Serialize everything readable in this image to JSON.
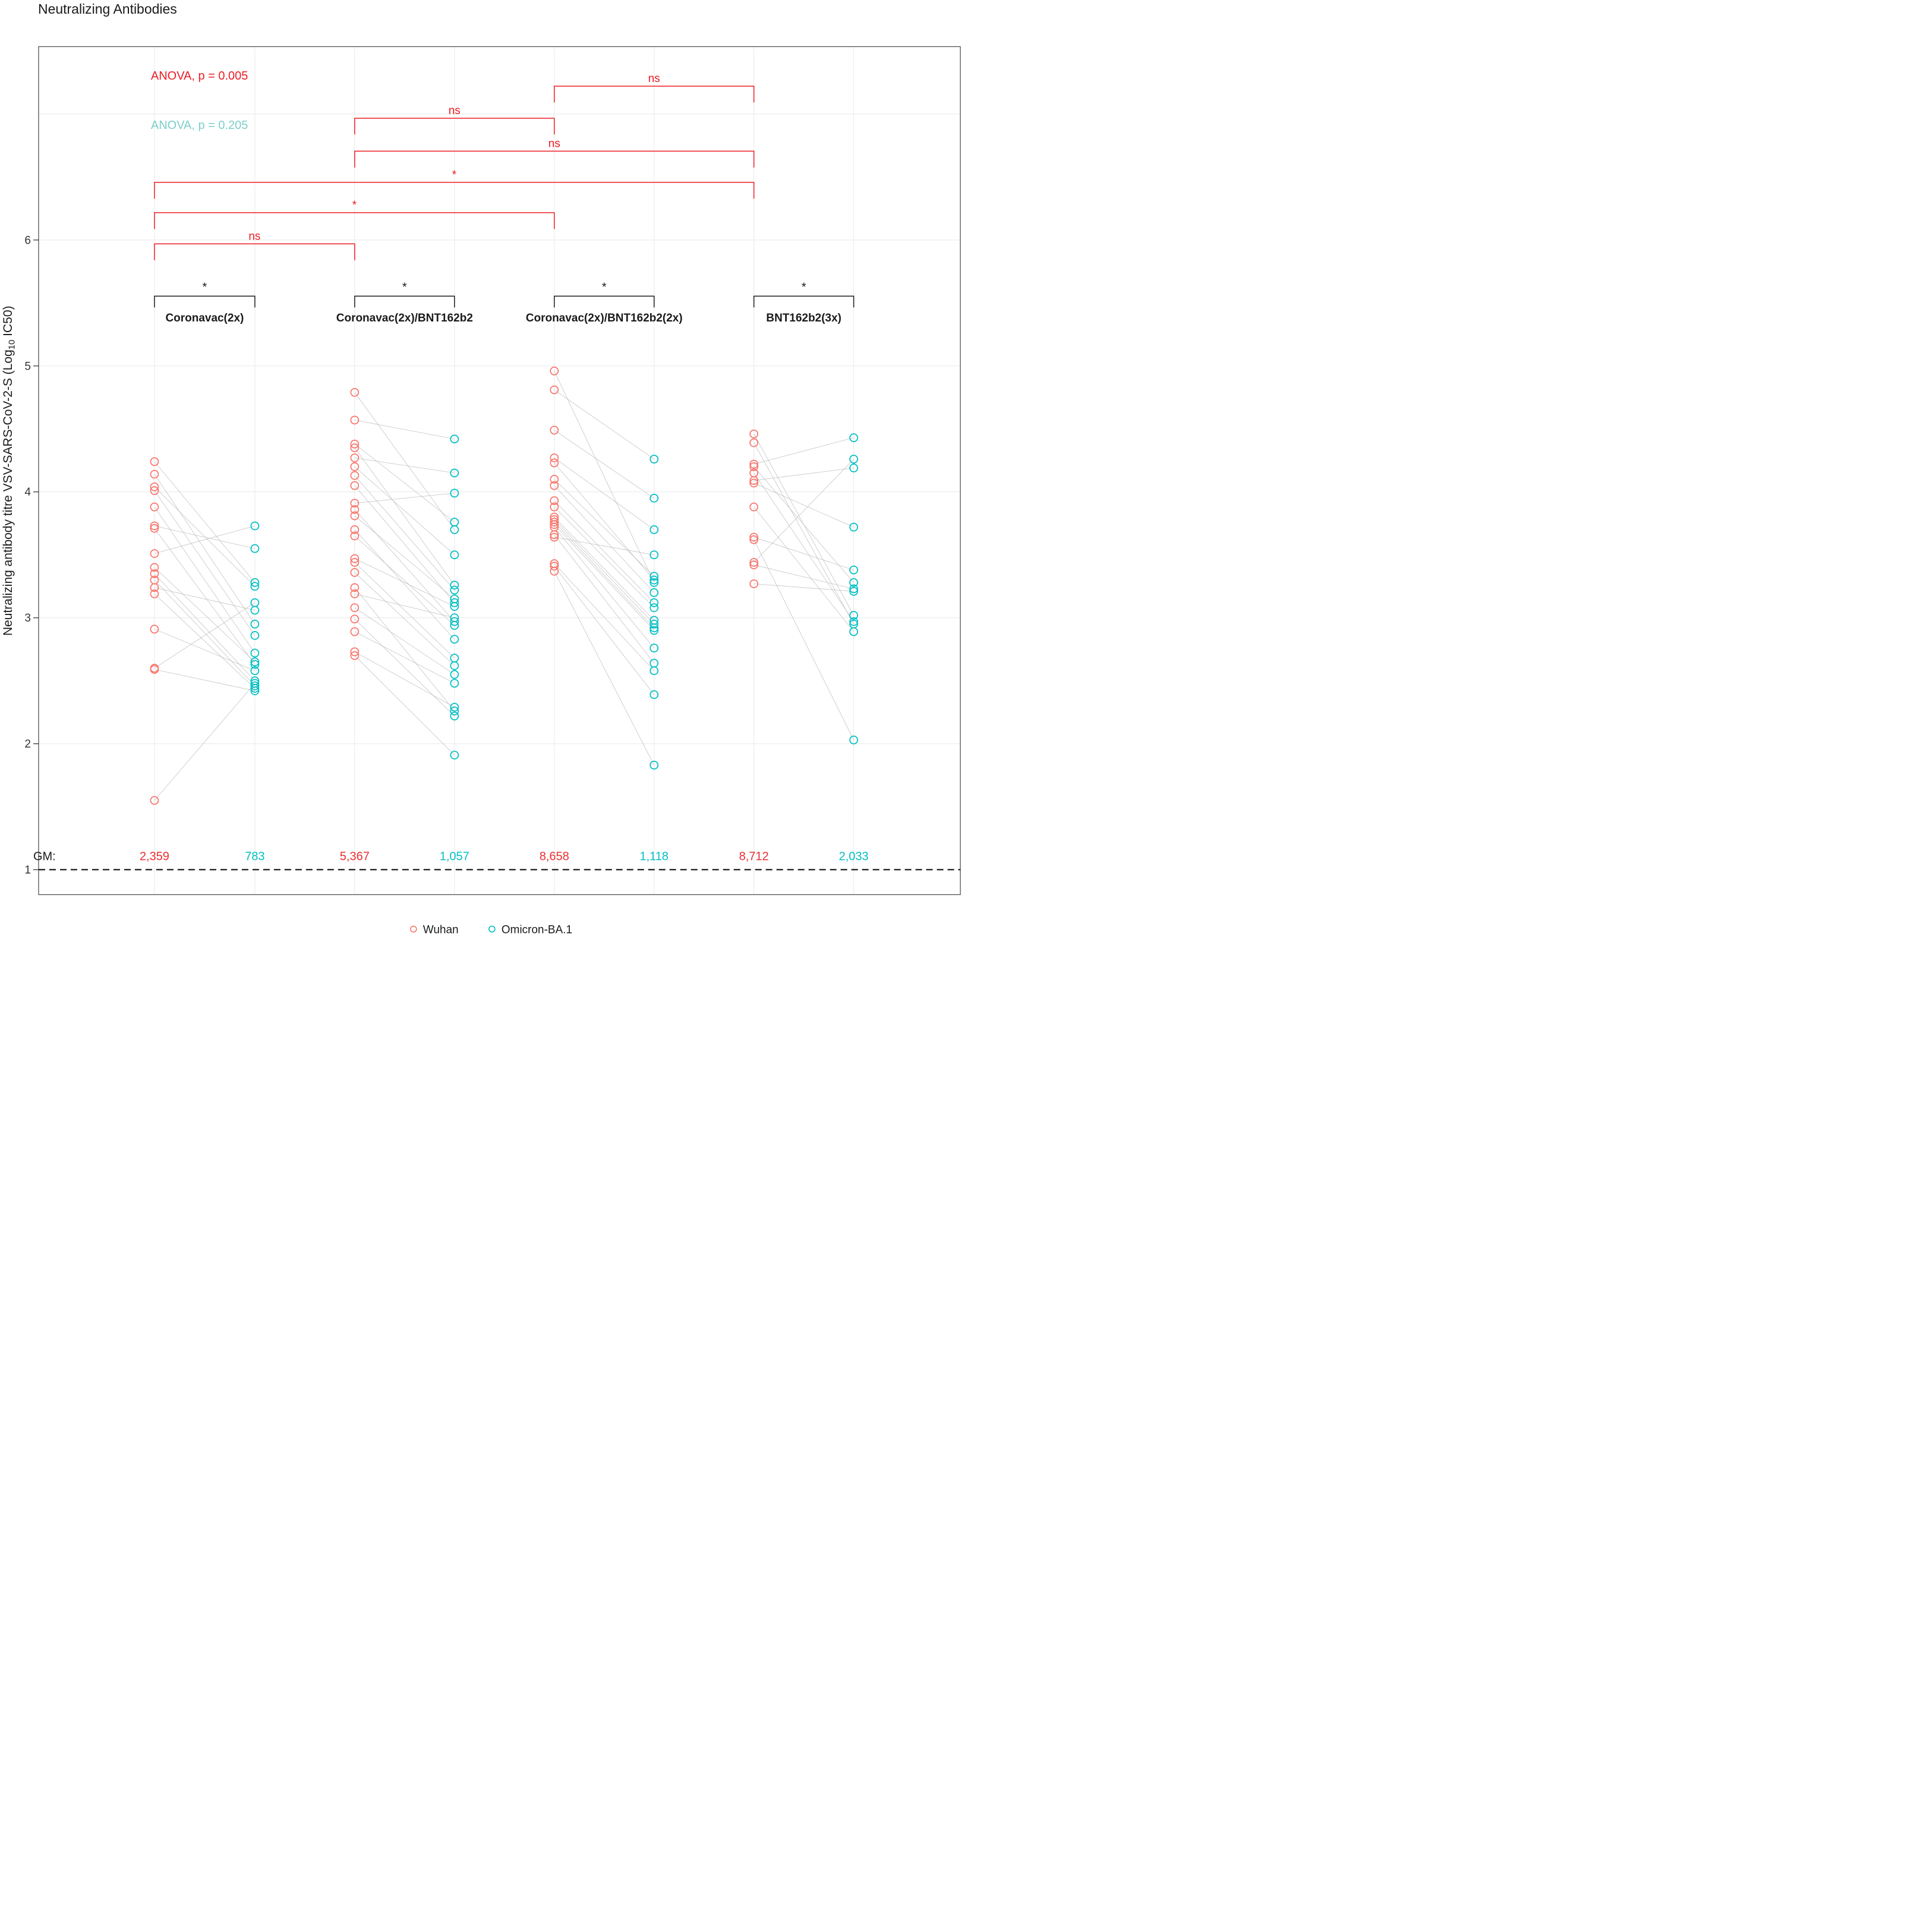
{
  "title": "Neutralizing Antibodies",
  "y_axis": {
    "label_prefix": "Neutralizing antibody titre VSV-SARS-CoV-2-S (Log",
    "label_subscript": "10",
    "label_suffix": " IC50)",
    "ticks": [
      1,
      2,
      3,
      4,
      5,
      6
    ]
  },
  "anova": {
    "wuhan_text": "ANOVA, p = 0.005",
    "omicron_text": "ANOVA, p = 0.205"
  },
  "gm_label": "GM:",
  "legend": {
    "items": [
      {
        "label": "Wuhan"
      },
      {
        "label": "Omicron-BA.1"
      }
    ]
  },
  "colors": {
    "wuhan": "#F8766D",
    "omicron": "#00BFC4",
    "significance": "#ED1C24",
    "anova_secondary": "#7CCFCB",
    "gm_wuhan": "#ED2C2F",
    "gm_omicron": "#00BFC4",
    "pair_line": "#BDBDBD",
    "gridline": "#E9E9E9",
    "border": "#4D4D4D",
    "text": "#1A1A1A"
  },
  "chart_data": {
    "type": "scatter",
    "subtype": "paired-dot-plot",
    "ylim": [
      0.8,
      7.55
    ],
    "grid": true,
    "legend_position": "bottom",
    "series_names": [
      "Wuhan",
      "Omicron-BA.1"
    ],
    "groups": [
      {
        "name": "Coronavac(2x)",
        "gm_wuhan": "2,359",
        "gm_omicron": "783",
        "pairs": [
          [
            4.24,
            3.28
          ],
          [
            4.14,
            2.95
          ],
          [
            4.04,
            3.25
          ],
          [
            4.01,
            2.86
          ],
          [
            3.88,
            2.72
          ],
          [
            3.73,
            3.55
          ],
          [
            3.71,
            2.63
          ],
          [
            3.51,
            3.73
          ],
          [
            3.4,
            2.65
          ],
          [
            3.35,
            2.5
          ],
          [
            3.3,
            2.46
          ],
          [
            3.24,
            3.06
          ],
          [
            3.19,
            2.44
          ],
          [
            2.91,
            2.58
          ],
          [
            2.6,
            3.12
          ],
          [
            2.59,
            2.42
          ],
          [
            1.55,
            2.48
          ]
        ]
      },
      {
        "name": "Coronavac(2x)/BNT162b2",
        "gm_wuhan": "5,367",
        "gm_omicron": "1,057",
        "pairs": [
          [
            4.79,
            3.7
          ],
          [
            4.57,
            4.42
          ],
          [
            4.38,
            3.76
          ],
          [
            4.35,
            3.26
          ],
          [
            4.27,
            4.15
          ],
          [
            4.2,
            3.5
          ],
          [
            4.13,
            3.22
          ],
          [
            4.05,
            3.12
          ],
          [
            3.91,
            3.99
          ],
          [
            3.86,
            2.97
          ],
          [
            3.81,
            3.15
          ],
          [
            3.7,
            2.83
          ],
          [
            3.65,
            2.94
          ],
          [
            3.47,
            3.09
          ],
          [
            3.44,
            2.68
          ],
          [
            3.36,
            2.62
          ],
          [
            3.24,
            2.26
          ],
          [
            3.19,
            3.0
          ],
          [
            3.08,
            2.55
          ],
          [
            2.99,
            2.22
          ],
          [
            2.89,
            2.48
          ],
          [
            2.73,
            2.29
          ],
          [
            2.7,
            1.91
          ]
        ]
      },
      {
        "name": "Coronavac(2x)/BNT162b2(2x)",
        "gm_wuhan": "8,658",
        "gm_omicron": "1,118",
        "pairs": [
          [
            4.96,
            3.28
          ],
          [
            4.81,
            4.26
          ],
          [
            4.49,
            3.95
          ],
          [
            4.27,
            3.7
          ],
          [
            4.23,
            3.3
          ],
          [
            4.1,
            3.33
          ],
          [
            4.05,
            3.2
          ],
          [
            3.93,
            3.12
          ],
          [
            3.88,
            3.08
          ],
          [
            3.8,
            2.98
          ],
          [
            3.78,
            2.95
          ],
          [
            3.76,
            2.92
          ],
          [
            3.74,
            2.9
          ],
          [
            3.72,
            2.76
          ],
          [
            3.66,
            2.64
          ],
          [
            3.64,
            3.5
          ],
          [
            3.43,
            2.58
          ],
          [
            3.41,
            2.39
          ],
          [
            3.37,
            1.83
          ]
        ]
      },
      {
        "name": "BNT162b2(3x)",
        "gm_wuhan": "8,712",
        "gm_omicron": "2,033",
        "pairs": [
          [
            4.46,
            3.02
          ],
          [
            4.39,
            2.95
          ],
          [
            4.22,
            4.43
          ],
          [
            4.2,
            3.28
          ],
          [
            4.15,
            2.97
          ],
          [
            4.09,
            4.19
          ],
          [
            4.07,
            3.72
          ],
          [
            3.88,
            2.89
          ],
          [
            3.64,
            3.38
          ],
          [
            3.62,
            2.03
          ],
          [
            3.44,
            4.26
          ],
          [
            3.42,
            3.23
          ],
          [
            3.27,
            3.21
          ]
        ]
      }
    ],
    "significance": {
      "within_groups": [
        {
          "group_index": 0,
          "label": "*"
        },
        {
          "group_index": 1,
          "label": "*"
        },
        {
          "group_index": 2,
          "label": "*"
        },
        {
          "group_index": 3,
          "label": "*"
        }
      ],
      "between_groups": [
        {
          "from": 2,
          "to": 3,
          "label": "ns"
        },
        {
          "from": 1,
          "to": 2,
          "label": "ns"
        },
        {
          "from": 1,
          "to": 3,
          "label": "ns"
        },
        {
          "from": 0,
          "to": 3,
          "label": "*"
        },
        {
          "from": 0,
          "to": 2,
          "label": "*"
        },
        {
          "from": 0,
          "to": 1,
          "label": "ns"
        }
      ],
      "baseline_value": 1
    }
  }
}
